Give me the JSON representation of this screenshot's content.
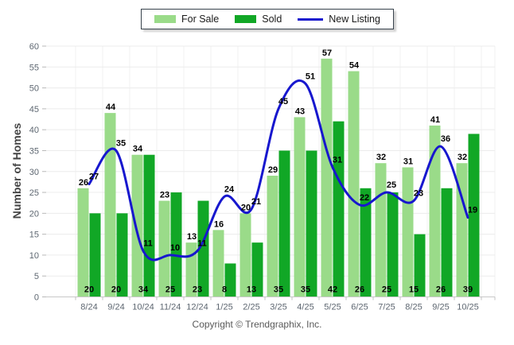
{
  "legend": {
    "items": [
      {
        "label": "For Sale",
        "swatch_color": "#9ADB89",
        "swatch_type": "bar"
      },
      {
        "label": "Sold",
        "swatch_color": "#11A726",
        "swatch_type": "bar"
      },
      {
        "label": "New Listing",
        "swatch_color": "#1717CE",
        "swatch_type": "line"
      }
    ]
  },
  "y_axis": {
    "title": "Number of Homes"
  },
  "footer": {
    "copyright": "Copyright © Trendgraphix, Inc."
  },
  "chart_data": {
    "type": "combo-bar-line",
    "title": "",
    "categories": [
      "8/24",
      "9/24",
      "10/24",
      "11/24",
      "12/24",
      "1/25",
      "2/25",
      "3/25",
      "4/25",
      "5/25",
      "6/25",
      "7/25",
      "8/25",
      "9/25",
      "10/25"
    ],
    "series": [
      {
        "name": "For Sale",
        "type": "bar",
        "color": "#9ADB89",
        "values": [
          26,
          44,
          34,
          23,
          13,
          16,
          20,
          29,
          43,
          57,
          54,
          32,
          31,
          41,
          32
        ]
      },
      {
        "name": "Sold",
        "type": "bar",
        "color": "#11A726",
        "values": [
          20,
          20,
          34,
          25,
          23,
          8,
          13,
          35,
          35,
          42,
          26,
          25,
          15,
          26,
          39
        ]
      },
      {
        "name": "New Listing",
        "type": "line",
        "color": "#1717CE",
        "values": [
          27,
          35,
          11,
          10,
          11,
          24,
          21,
          45,
          51,
          31,
          22,
          25,
          23,
          36,
          19
        ]
      }
    ],
    "xlabel": "",
    "ylabel": "Number of Homes",
    "ylim": [
      0,
      60
    ],
    "yticks": [
      0,
      5,
      10,
      15,
      20,
      25,
      30,
      35,
      40,
      45,
      50,
      55,
      60
    ],
    "grid": true,
    "legend_position": "top-center",
    "value_labels": true,
    "label_color": "#000000",
    "axis_text_color": "#5E6771",
    "gridline_color": "#ECECEC",
    "axis_line_color": "#C8C8C8"
  }
}
